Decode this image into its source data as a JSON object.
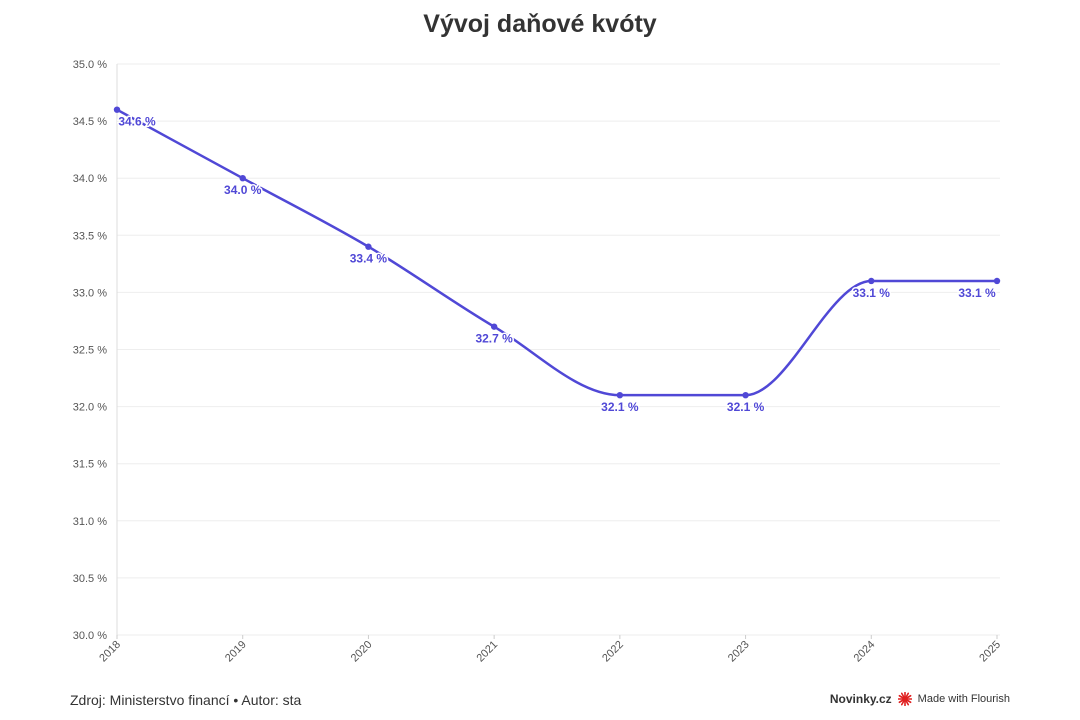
{
  "title": "Vývoj daňové kvóty",
  "footer": {
    "source": "Zdroj: Ministerstvo financí • Autor: sta",
    "brand": "Novinky.cz",
    "made_with": "Made with Flourish"
  },
  "colors": {
    "series": "#5048d6",
    "grid": "#eeeeee",
    "tick_text": "#555555",
    "flourish_logo": "#e02020"
  },
  "chart_data": {
    "type": "line",
    "title": "Vývoj daňové kvóty",
    "xlabel": "",
    "ylabel": "",
    "x": [
      "2018",
      "2019",
      "2020",
      "2021",
      "2022",
      "2023",
      "2024",
      "2025"
    ],
    "series": [
      {
        "values": [
          34.6,
          34.0,
          33.4,
          32.7,
          32.1,
          32.1,
          33.1,
          33.1
        ],
        "labels": [
          "34.6 %",
          "34.0 %",
          "33.4 %",
          "32.7 %",
          "32.1 %",
          "32.1 %",
          "33.1 %",
          "33.1 %"
        ]
      }
    ],
    "ylim": [
      30.0,
      35.0
    ],
    "yticks": [
      30.0,
      30.5,
      31.0,
      31.5,
      32.0,
      32.5,
      33.0,
      33.5,
      34.0,
      34.5,
      35.0
    ],
    "ytick_labels": [
      "30.0 %",
      "30.5 %",
      "31.0 %",
      "31.5 %",
      "32.0 %",
      "32.5 %",
      "33.0 %",
      "33.5 %",
      "34.0 %",
      "34.5 %",
      "35.0 %"
    ],
    "grid": true,
    "legend": "none",
    "line_style": "smooth"
  }
}
